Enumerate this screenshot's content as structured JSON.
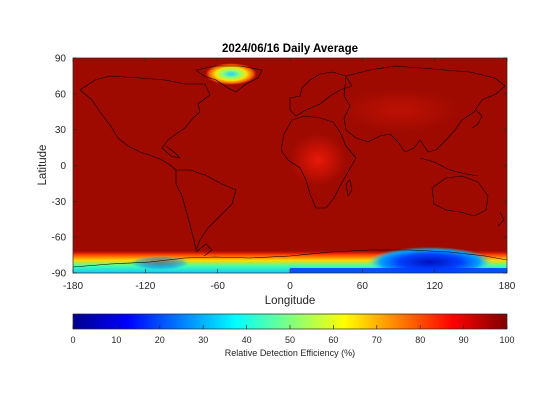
{
  "chart_data": {
    "type": "heatmap",
    "title": "2024/06/16 Daily Average",
    "xlabel": "Longitude",
    "ylabel": "Latitude",
    "xlim": [
      -180,
      180
    ],
    "ylim": [
      -90,
      90
    ],
    "xticks": [
      -180,
      -120,
      -60,
      0,
      60,
      120,
      180
    ],
    "yticks": [
      90,
      60,
      30,
      0,
      -30,
      -60,
      -90
    ],
    "grid": false,
    "colorbar": {
      "label": "Relative Detection Efficiency (%)",
      "colormap": "jet",
      "range": [
        0,
        100
      ],
      "ticks": [
        0,
        10,
        20,
        30,
        40,
        50,
        60,
        70,
        80,
        90,
        100
      ],
      "placement": "bottom"
    },
    "field_summary": {
      "background_value": 97,
      "africa_value": 92,
      "greenland_minimum": 40,
      "antarctic_band_minimum": 5,
      "antarctic_east_minimum": 0
    }
  }
}
